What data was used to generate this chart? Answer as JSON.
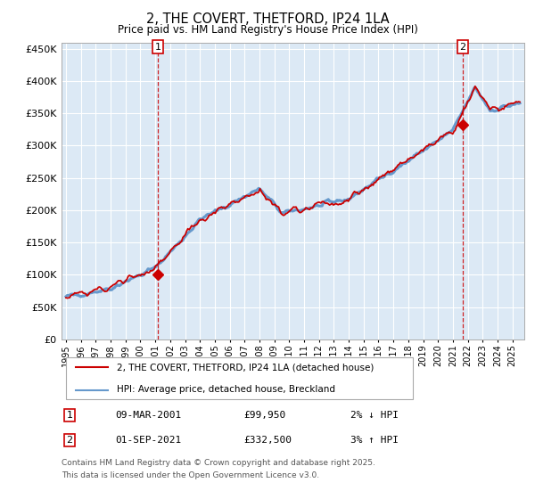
{
  "title": "2, THE COVERT, THETFORD, IP24 1LA",
  "subtitle": "Price paid vs. HM Land Registry's House Price Index (HPI)",
  "legend_line1": "2, THE COVERT, THETFORD, IP24 1LA (detached house)",
  "legend_line2": "HPI: Average price, detached house, Breckland",
  "sale1_date": "09-MAR-2001",
  "sale1_price": "£99,950",
  "sale1_hpi": "2% ↓ HPI",
  "sale2_date": "01-SEP-2021",
  "sale2_price": "£332,500",
  "sale2_hpi": "3% ↑ HPI",
  "footnote_line1": "Contains HM Land Registry data © Crown copyright and database right 2025.",
  "footnote_line2": "This data is licensed under the Open Government Licence v3.0.",
  "ylim": [
    0,
    460000
  ],
  "yticks": [
    0,
    50000,
    100000,
    150000,
    200000,
    250000,
    300000,
    350000,
    400000,
    450000
  ],
  "xmin": 1994.7,
  "xmax": 2025.8,
  "background_color": "#ffffff",
  "plot_bg_color": "#dce9f5",
  "grid_color": "#ffffff",
  "red_line_color": "#cc0000",
  "blue_line_color": "#6699cc",
  "vline_color": "#cc0000",
  "marker_color": "#cc0000",
  "sale1_year": 2001.18,
  "sale1_val": 99950,
  "sale2_year": 2021.67,
  "sale2_val": 332500
}
